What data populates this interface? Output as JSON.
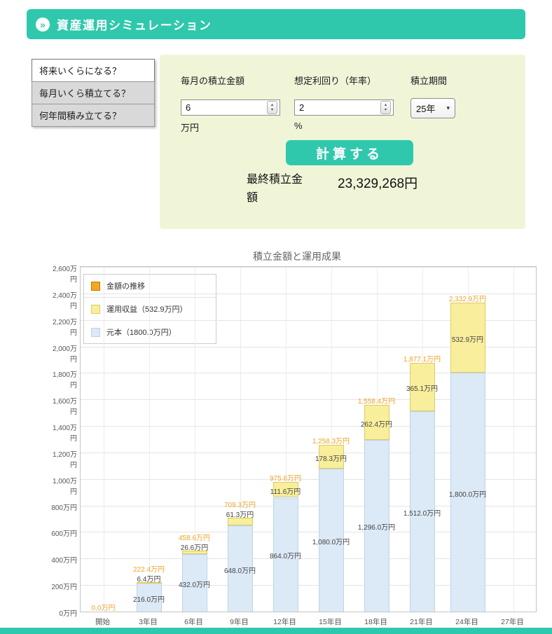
{
  "page": {
    "accent_color": "#30c8ad",
    "panel_bg": "#f0f5d8"
  },
  "header": {
    "title": "資産運用シミュレーション"
  },
  "sidebar": {
    "tabs": [
      {
        "label": "将来いくらになる？",
        "active": true
      },
      {
        "label": "毎月いくら積立てる？",
        "active": false
      },
      {
        "label": "何年間積み立てる？",
        "active": false
      }
    ]
  },
  "form": {
    "fields": {
      "monthly": {
        "label": "毎月の積立金額",
        "value": "6",
        "unit": "万円"
      },
      "rate": {
        "label": "想定利回り（年率）",
        "value": "2",
        "unit": "%"
      },
      "period": {
        "label": "積立期間",
        "value": "25年"
      }
    },
    "calculate_button": "計算する",
    "result": {
      "label": "最終積立金額",
      "value": "23,329,268円"
    }
  },
  "chart_data": {
    "type": "bar",
    "stacked": true,
    "title": "積立金額と運用成果",
    "x_tick_labels": [
      "開始",
      "3年目",
      "6年目",
      "9年目",
      "12年目",
      "15年目",
      "18年目",
      "21年目",
      "24年目",
      "27年目"
    ],
    "y_tick_labels": [
      "0万円",
      "200万円",
      "400万円",
      "600万円",
      "800万円",
      "1,000万円",
      "1,200万円",
      "1,400万円",
      "1,600万円",
      "1,800万円",
      "2,000万円",
      "2,200万円",
      "2,400万円",
      "2,600万円"
    ],
    "y_max": 2600,
    "y_step": 200,
    "ylabel_unit": "万円",
    "legend_position": "top-left",
    "grid": true,
    "legend": [
      {
        "label": "金額の推移",
        "color": "#f5a623",
        "border": "#b97f00"
      },
      {
        "label": "運用収益（532.9万円）",
        "color": "#f9ee9b",
        "border": "#ddcb5f"
      },
      {
        "label": "元本（1800.0万円）",
        "color": "#dce9f6",
        "border": "#bcd4ea"
      }
    ],
    "bar_tick_index": [
      0,
      1,
      2,
      3,
      4,
      5,
      6,
      7,
      8
    ],
    "series": [
      {
        "name": "元本",
        "color": "#dce9f6",
        "border": "#bcd4ea",
        "values": [
          0,
          216.0,
          432.0,
          648.0,
          864.0,
          1080.0,
          1296.0,
          1512.0,
          1800.0
        ]
      },
      {
        "name": "運用収益",
        "color": "#f9ee9b",
        "border": "#ddcb5f",
        "values": [
          0,
          6.4,
          26.6,
          61.3,
          111.6,
          178.3,
          262.4,
          365.1,
          532.9
        ]
      }
    ],
    "totals": [
      0,
      222.4,
      458.6,
      709.3,
      975.6,
      1258.3,
      1558.4,
      1877.1,
      2332.9
    ],
    "labels": {
      "totals": [
        "0.0万円",
        "222.4万円",
        "458.6万円",
        "709.3万円",
        "975.6万円",
        "1,258.3万円",
        "1,558.4万円",
        "1,877.1万円",
        "2,332.9万円"
      ],
      "returns": [
        "",
        "6.4万円",
        "26.6万円",
        "61.3万円",
        "111.6万円",
        "178.3万円",
        "262.4万円",
        "365.1万円",
        "532.9万円"
      ],
      "principal": [
        "",
        "216.0万円",
        "432.0万円",
        "648.0万円",
        "864.0万円",
        "1,080.0万円",
        "1,296.0万円",
        "1,512.0万円",
        "1,800.0万円"
      ]
    }
  }
}
